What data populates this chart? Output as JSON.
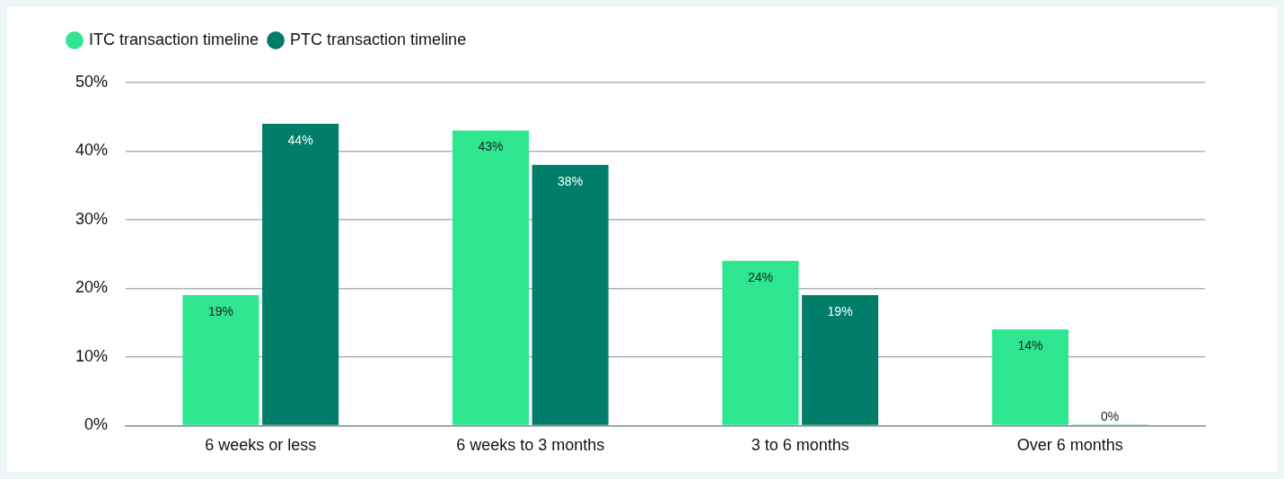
{
  "chart_data": {
    "type": "bar",
    "categories": [
      "6 weeks or less",
      "6 weeks to 3 months",
      "3 to 6 months",
      "Over 6 months"
    ],
    "series": [
      {
        "name": "ITC transaction timeline",
        "color": "#2ee68f",
        "values": [
          19,
          43,
          24,
          14
        ],
        "value_labels": [
          "19%",
          "43%",
          "24%",
          "14%"
        ]
      },
      {
        "name": "PTC transaction timeline",
        "color": "#007e69",
        "values": [
          44,
          38,
          19,
          0
        ],
        "value_labels": [
          "44%",
          "38%",
          "19%",
          "0%"
        ]
      }
    ],
    "ylim": [
      0,
      50
    ],
    "yticks": [
      {
        "value": 0,
        "label": "0%"
      },
      {
        "value": 10,
        "label": "10%"
      },
      {
        "value": 20,
        "label": "20%"
      },
      {
        "value": 30,
        "label": "30%"
      },
      {
        "value": 40,
        "label": "40%"
      },
      {
        "value": 50,
        "label": "50%"
      }
    ],
    "grid": "y",
    "legend": "top left"
  }
}
